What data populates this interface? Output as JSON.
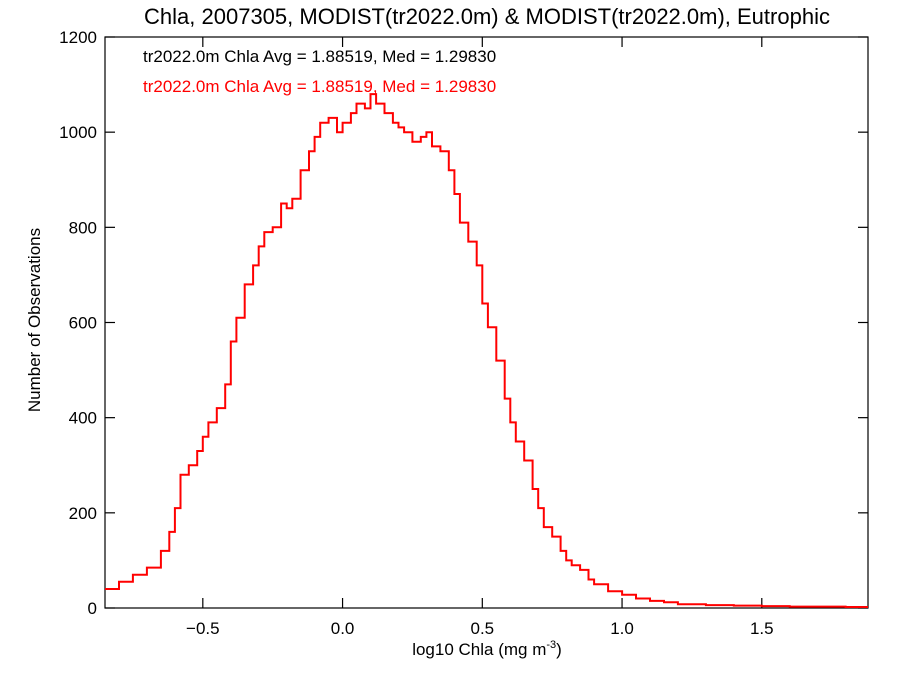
{
  "chart_data": {
    "type": "line",
    "step": true,
    "title": "Chla, 2007305, MODIST(tr2022.0m) & MODIST(tr2022.0m), Eutrophic",
    "xlabel_main": "log10 Chla (mg m",
    "xlabel_sup": "-3",
    "xlabel_close": ")",
    "ylabel": "Number of Observations",
    "xlim": [
      -0.85,
      1.88
    ],
    "ylim": [
      0,
      1200
    ],
    "xticks": [
      -0.5,
      0.0,
      0.5,
      1.0,
      1.5
    ],
    "xtick_labels": [
      "−0.5",
      "0.0",
      "0.5",
      "1.0",
      "1.5"
    ],
    "yticks": [
      0,
      200,
      400,
      600,
      800,
      1000,
      1200
    ],
    "ytick_labels": [
      "0",
      "200",
      "400",
      "600",
      "800",
      "1000",
      "1200"
    ],
    "grid": false,
    "annotations": [
      {
        "text": "tr2022.0m Chla Avg = 1.88519, Med = 1.29830",
        "color": "#000000"
      },
      {
        "text": "tr2022.0m Chla Avg = 1.88519, Med = 1.29830",
        "color": "#ff0000"
      }
    ],
    "series": [
      {
        "color": "#ff0000",
        "x": [
          -0.85,
          -0.8,
          -0.75,
          -0.7,
          -0.65,
          -0.62,
          -0.6,
          -0.58,
          -0.55,
          -0.52,
          -0.5,
          -0.48,
          -0.45,
          -0.42,
          -0.4,
          -0.38,
          -0.35,
          -0.32,
          -0.3,
          -0.28,
          -0.25,
          -0.22,
          -0.2,
          -0.18,
          -0.15,
          -0.12,
          -0.1,
          -0.08,
          -0.05,
          -0.02,
          0.0,
          0.03,
          0.05,
          0.08,
          0.1,
          0.12,
          0.15,
          0.18,
          0.2,
          0.22,
          0.25,
          0.28,
          0.3,
          0.32,
          0.35,
          0.38,
          0.4,
          0.42,
          0.45,
          0.48,
          0.5,
          0.52,
          0.55,
          0.58,
          0.6,
          0.62,
          0.65,
          0.68,
          0.7,
          0.72,
          0.75,
          0.78,
          0.8,
          0.82,
          0.85,
          0.88,
          0.9,
          0.95,
          1.0,
          1.05,
          1.1,
          1.15,
          1.2,
          1.3,
          1.4,
          1.5,
          1.6,
          1.7,
          1.8,
          1.88
        ],
        "y": [
          40,
          55,
          70,
          85,
          120,
          160,
          210,
          280,
          300,
          330,
          360,
          390,
          420,
          470,
          560,
          610,
          680,
          720,
          760,
          790,
          800,
          850,
          840,
          860,
          920,
          960,
          990,
          1020,
          1030,
          1000,
          1020,
          1040,
          1060,
          1050,
          1080,
          1060,
          1040,
          1020,
          1010,
          1000,
          980,
          990,
          1000,
          970,
          960,
          920,
          870,
          810,
          770,
          720,
          640,
          590,
          520,
          440,
          390,
          350,
          310,
          250,
          210,
          170,
          150,
          120,
          100,
          90,
          80,
          60,
          50,
          35,
          28,
          20,
          15,
          12,
          8,
          6,
          5,
          4,
          3,
          3,
          2,
          2
        ]
      }
    ]
  }
}
